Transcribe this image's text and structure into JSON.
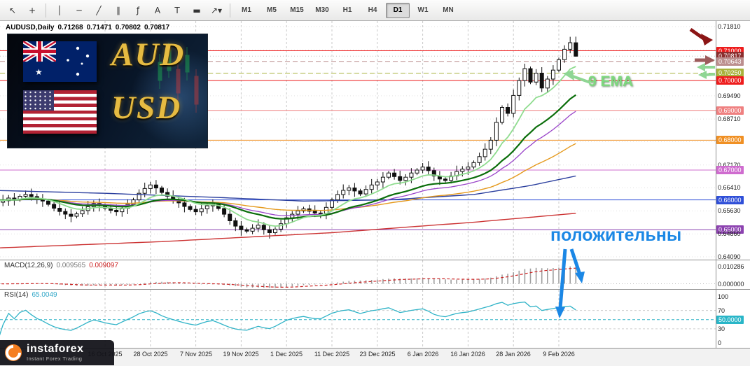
{
  "toolbar": {
    "tools": [
      {
        "name": "cursor",
        "glyph": "↖"
      },
      {
        "name": "crosshair",
        "glyph": "+"
      },
      {
        "name": "vertical-line",
        "glyph": "│"
      },
      {
        "name": "horizontal-line",
        "glyph": "─"
      },
      {
        "name": "trendline",
        "glyph": "╱"
      },
      {
        "name": "channel",
        "glyph": "∥"
      },
      {
        "name": "fibonacci",
        "glyph": "ƒ"
      },
      {
        "name": "text",
        "glyph": "A"
      },
      {
        "name": "label",
        "glyph": "T"
      },
      {
        "name": "shapes",
        "glyph": "▬"
      },
      {
        "name": "arrows",
        "glyph": "↗▾"
      }
    ],
    "timeframes": [
      {
        "label": "M1"
      },
      {
        "label": "M5"
      },
      {
        "label": "M15"
      },
      {
        "label": "M30"
      },
      {
        "label": "H1"
      },
      {
        "label": "H4"
      },
      {
        "label": "D1",
        "active": true
      },
      {
        "label": "W1"
      },
      {
        "label": "MN"
      }
    ]
  },
  "chart": {
    "symbol": "AUDUSD,Daily",
    "open": "0.71268",
    "high": "0.71471",
    "low": "0.70802",
    "close": "0.70817"
  },
  "promo": {
    "top": "AUD",
    "bottom": "USD"
  },
  "annotations": {
    "ema": "9 EMA",
    "positive": "положительны"
  },
  "watermark": {
    "brand": "instaforex",
    "tagline": "Instant Forex Trading"
  },
  "macd_panel": {
    "title": "MACD(12,26,9)",
    "main_value": "0.009565",
    "signal_value": "0.009097",
    "scale": [
      {
        "text": "0.010286",
        "value": 0.010286
      },
      {
        "text": "0.000000",
        "value": 0
      }
    ]
  },
  "rsi_panel": {
    "title": "RSI(14)",
    "value": "65.0049",
    "scale": [
      {
        "text": "100",
        "value": 100
      },
      {
        "text": "70",
        "value": 70
      },
      {
        "text": "50.0000",
        "value": 50,
        "bg": "#29b6c8"
      },
      {
        "text": "30",
        "value": 30
      },
      {
        "text": "0",
        "value": 0
      }
    ]
  },
  "price_axis": [
    {
      "text": "0.71810",
      "price": 0.7181,
      "bg": null
    },
    {
      "text": "0.71000",
      "price": 0.71,
      "bg": "#ee1c1c"
    },
    {
      "text": "0.70817",
      "price": 0.70817,
      "bg": "#8b2e2e"
    },
    {
      "text": "0.70643",
      "price": 0.70643,
      "bg": "#bc8f8f"
    },
    {
      "text": "0.70250",
      "price": 0.7025,
      "bg": "#a8b23c"
    },
    {
      "text": "0.70000",
      "price": 0.7,
      "bg": "#ee1c1c"
    },
    {
      "text": "0.69490",
      "price": 0.6949,
      "bg": null
    },
    {
      "text": "0.69000",
      "price": 0.69,
      "bg": "#ef8080"
    },
    {
      "text": "0.68710",
      "price": 0.6871,
      "bg": null
    },
    {
      "text": "0.68000",
      "price": 0.68,
      "bg": "#f09024"
    },
    {
      "text": "0.67170",
      "price": 0.6717,
      "bg": null
    },
    {
      "text": "0.67000",
      "price": 0.67,
      "bg": "#cf6ccf"
    },
    {
      "text": "0.66410",
      "price": 0.6641,
      "bg": null
    },
    {
      "text": "0.66000",
      "price": 0.66,
      "bg": "#2f4fd8"
    },
    {
      "text": "0.65630",
      "price": 0.6563,
      "bg": null
    },
    {
      "text": "0.65000",
      "price": 0.65,
      "bg": "#8c42b0"
    },
    {
      "text": "0.64860",
      "price": 0.6486,
      "bg": null
    },
    {
      "text": "0.64090",
      "price": 0.6409,
      "bg": null
    }
  ],
  "levels": [
    {
      "price": 0.71,
      "color": "#ee1c1c",
      "style": "solid"
    },
    {
      "price": 0.70817,
      "color": "#bdbdbd",
      "style": "dot"
    },
    {
      "price": 0.70643,
      "color": "#bc8f8f",
      "style": "dash"
    },
    {
      "price": 0.7025,
      "color": "#a8b23c",
      "style": "dash"
    },
    {
      "price": 0.7,
      "color": "#ee1c1c",
      "style": "solid"
    },
    {
      "price": 0.69,
      "color": "#ef8080",
      "style": "solid"
    },
    {
      "price": 0.68,
      "color": "#f09024",
      "style": "solid"
    },
    {
      "price": 0.67,
      "color": "#cf6ccf",
      "style": "solid"
    },
    {
      "price": 0.66,
      "color": "#2f4fd8",
      "style": "solid"
    },
    {
      "price": 0.65,
      "color": "#8c42b0",
      "style": "solid"
    }
  ],
  "time_axis": [
    {
      "text": "16 Oct 2025",
      "idx": 20
    },
    {
      "text": "28 Oct 2025",
      "idx": 28
    },
    {
      "text": "7 Nov 2025",
      "idx": 36
    },
    {
      "text": "19 Nov 2025",
      "idx": 44
    },
    {
      "text": "1 Dec 2025",
      "idx": 52
    },
    {
      "text": "11 Dec 2025",
      "idx": 60
    },
    {
      "text": "23 Dec 2025",
      "idx": 68
    },
    {
      "text": "6 Jan 2026",
      "idx": 76
    },
    {
      "text": "16 Jan 2026",
      "idx": 84
    },
    {
      "text": "28 Jan 2026",
      "idx": 92
    },
    {
      "text": "9 Feb 2026",
      "idx": 100
    }
  ],
  "chart_data": {
    "type": "candlestick",
    "symbol": "AUDUSD",
    "timeframe": "Daily",
    "ylim": [
      0.6409,
      0.7181
    ],
    "current_ohlc": {
      "open": 0.71268,
      "high": 0.71471,
      "low": 0.70802,
      "close": 0.70817
    },
    "closes": [
      0.66,
      0.6592,
      0.6597,
      0.6606,
      0.6601,
      0.6612,
      0.6618,
      0.6611,
      0.6603,
      0.6596,
      0.6585,
      0.6572,
      0.6561,
      0.6552,
      0.6545,
      0.6553,
      0.6564,
      0.6577,
      0.6588,
      0.6581,
      0.6572,
      0.6565,
      0.656,
      0.6572,
      0.6585,
      0.66,
      0.6622,
      0.6638,
      0.665,
      0.664,
      0.6625,
      0.6612,
      0.6601,
      0.659,
      0.6578,
      0.6568,
      0.656,
      0.657,
      0.658,
      0.6585,
      0.6571,
      0.6552,
      0.653,
      0.6512,
      0.65,
      0.6495,
      0.6505,
      0.6515,
      0.65,
      0.649,
      0.6502,
      0.652,
      0.654,
      0.6552,
      0.6563,
      0.657,
      0.6562,
      0.6556,
      0.6555,
      0.6575,
      0.66,
      0.6618,
      0.6632,
      0.664,
      0.663,
      0.662,
      0.6635,
      0.665,
      0.666,
      0.6676,
      0.669,
      0.6678,
      0.6665,
      0.6676,
      0.669,
      0.67,
      0.671,
      0.6698,
      0.668,
      0.667,
      0.6665,
      0.668,
      0.6695,
      0.6703,
      0.671,
      0.6725,
      0.6745,
      0.677,
      0.68,
      0.686,
      0.691,
      0.689,
      0.695,
      0.7,
      0.704,
      0.6995,
      0.7025,
      0.6975,
      0.7005,
      0.7035,
      0.707,
      0.7105,
      0.7127,
      0.70817
    ],
    "grid_ticks": [
      0.7181,
      0.7103,
      0.7025,
      0.6949,
      0.6871,
      0.6795,
      0.6717,
      0.6641,
      0.6563,
      0.6486,
      0.6409
    ],
    "emas": [
      {
        "period": 9,
        "color": "#8fdc8f",
        "width": 1.8
      },
      {
        "period": 21,
        "color": "#0b6e0b",
        "width": 2.2
      },
      {
        "period": 30,
        "color": "#9a45c9",
        "width": 1.3
      },
      {
        "period": 60,
        "color": "#e59a1e",
        "width": 1.4
      }
    ],
    "slow_lines": [
      {
        "name": "blue-ma",
        "color": "#2b3f9e",
        "anchors": [
          [
            0,
            0.6632
          ],
          [
            20,
            0.6622
          ],
          [
            40,
            0.6608
          ],
          [
            55,
            0.6596
          ],
          [
            70,
            0.66
          ],
          [
            85,
            0.6618
          ],
          [
            95,
            0.6648
          ],
          [
            103,
            0.668
          ]
        ]
      },
      {
        "name": "red-ma",
        "color": "#cc3333",
        "anchors": [
          [
            0,
            0.6438
          ],
          [
            30,
            0.646
          ],
          [
            60,
            0.649
          ],
          [
            85,
            0.6525
          ],
          [
            103,
            0.6555
          ]
        ]
      }
    ],
    "macd": {
      "fast": 12,
      "slow": 26,
      "signal": 9
    },
    "rsi": {
      "period": 14
    }
  }
}
